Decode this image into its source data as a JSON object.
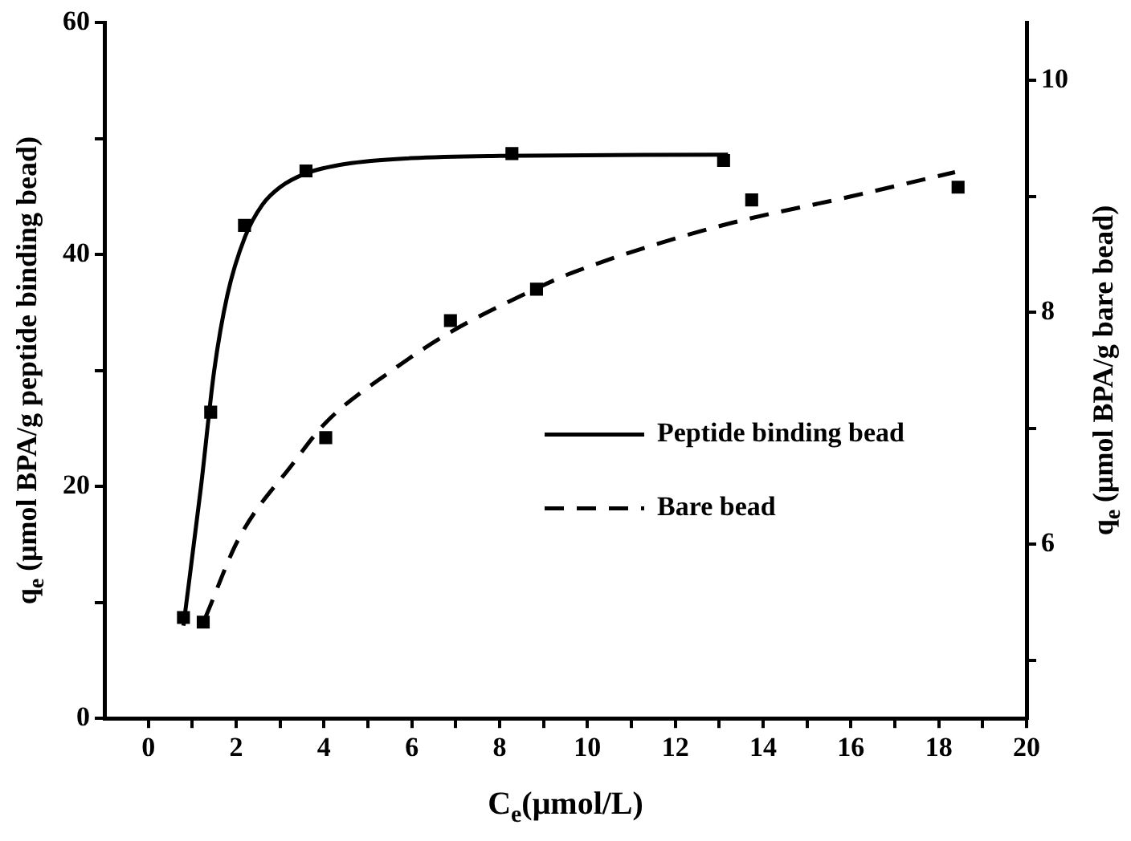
{
  "chart_data": {
    "type": "scatter",
    "xlabel": "C$_{e}$(μmol/L)",
    "ylabel": "q$_{e}$ (μmol BPA/g peptide binding bead)",
    "y2label": "q$_{e}$ (μmol BPA/g bare bead)",
    "xlim": [
      -1,
      20
    ],
    "xticks": [
      0,
      {
        "value": 1,
        "label": null
      },
      2,
      {
        "value": 3,
        "label": null
      },
      4,
      {
        "value": 5,
        "label": null
      },
      6,
      {
        "value": 7,
        "label": null
      },
      8,
      {
        "value": 9,
        "label": null
      },
      10,
      {
        "value": 11,
        "label": null
      },
      12,
      {
        "value": 13,
        "label": null
      },
      14,
      {
        "value": 15,
        "label": null
      },
      16,
      {
        "value": 17,
        "label": null
      },
      18,
      {
        "value": 19,
        "label": null
      },
      20
    ],
    "ylim": [
      0,
      60
    ],
    "yticks": [
      0,
      {
        "value": 10,
        "label": null
      },
      20,
      {
        "value": 30,
        "label": null
      },
      40,
      {
        "value": 50,
        "label": null
      },
      60
    ],
    "y2lim": [
      4.5,
      10.5
    ],
    "y2ticks": [
      {
        "value": 5,
        "label": null
      },
      6,
      {
        "value": 7,
        "label": null
      },
      8,
      {
        "value": 9,
        "label": null
      },
      10
    ],
    "grid": false,
    "legend": "right",
    "series": [
      {
        "marker": "square",
        "color": "#000000",
        "x": [
          0.8,
          1.42,
          2.19,
          3.59,
          8.28,
          13.1
        ],
        "values": [
          8.7,
          26.4,
          42.5,
          47.2,
          48.7,
          48.1
        ]
      },
      {
        "marker": "square",
        "axis": "y2",
        "color": "#000000",
        "x": [
          1.25,
          4.04,
          6.88,
          8.84,
          13.74,
          18.44
        ],
        "values": [
          5.33,
          6.92,
          7.93,
          8.2,
          8.97,
          9.08
        ]
      },
      {
        "type": "line",
        "name": "Peptide binding bead",
        "color": "#000000",
        "marker": "none",
        "line_style": "solid",
        "x": [
          0.8,
          1.2,
          1.5,
          1.8,
          2.2,
          2.6,
          3,
          3.6,
          4.5,
          6,
          8,
          13.2
        ],
        "values": [
          8,
          20,
          30,
          36.5,
          41.5,
          44.3,
          45.8,
          47,
          47.8,
          48.3,
          48.5,
          48.6
        ]
      },
      {
        "type": "line",
        "name": "Bare bead",
        "axis": "y2",
        "color": "#000000",
        "marker": "none",
        "line_style": "dashed",
        "x": [
          1.3,
          2.06,
          3.3,
          4.04,
          5.55,
          6.88,
          8.8,
          9.64,
          12.96,
          16,
          18.37
        ],
        "values": [
          5.37,
          6.05,
          6.7,
          7.05,
          7.5,
          7.83,
          8.2,
          8.34,
          8.74,
          9.0,
          9.21
        ]
      }
    ]
  }
}
